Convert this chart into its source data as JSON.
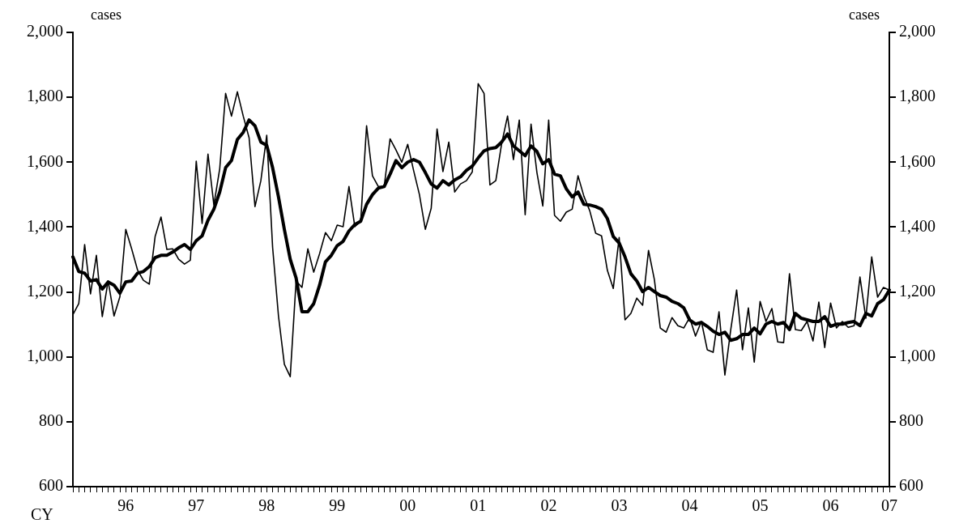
{
  "chart_data": {
    "type": "line",
    "xlabel": "CY",
    "ylabel": "cases",
    "y2label": "cases",
    "categories": [
      null,
      null,
      null,
      null,
      null,
      null,
      null,
      null,
      null,
      "96",
      null,
      null,
      null,
      null,
      null,
      null,
      null,
      null,
      null,
      null,
      null,
      "97",
      null,
      null,
      null,
      null,
      null,
      null,
      null,
      null,
      null,
      null,
      null,
      "98",
      null,
      null,
      null,
      null,
      null,
      null,
      null,
      null,
      null,
      null,
      null,
      "99",
      null,
      null,
      null,
      null,
      null,
      null,
      null,
      null,
      null,
      null,
      null,
      "00",
      null,
      null,
      null,
      null,
      null,
      null,
      null,
      null,
      null,
      null,
      null,
      "01",
      null,
      null,
      null,
      null,
      null,
      null,
      null,
      null,
      null,
      null,
      null,
      "02",
      null,
      null,
      null,
      null,
      null,
      null,
      null,
      null,
      null,
      null,
      null,
      "03",
      null,
      null,
      null,
      null,
      null,
      null,
      null,
      null,
      null,
      null,
      null,
      "04",
      null,
      null,
      null,
      null,
      null,
      null,
      null,
      null,
      null,
      null,
      null,
      "05",
      null,
      null,
      null,
      null,
      null,
      null,
      null,
      null,
      null,
      null,
      null,
      "06",
      null,
      null,
      null,
      null,
      null,
      null,
      null,
      null,
      null,
      "07"
    ],
    "series": [
      {
        "color": "#000000",
        "values": [
          1130,
          1164,
          1346,
          1194,
          1313,
          1124,
          1234,
          1126,
          1185,
          1393,
          1333,
          1268,
          1236,
          1224,
          1371,
          1431,
          1331,
          1333,
          1301,
          1286,
          1298,
          1603,
          1411,
          1625,
          1468,
          1580,
          1812,
          1742,
          1817,
          1742,
          1675,
          1463,
          1543,
          1683,
          1338,
          1126,
          977,
          939,
          1234,
          1214,
          1333,
          1261,
          1318,
          1383,
          1358,
          1406,
          1401,
          1525,
          1401,
          1418,
          1712,
          1558,
          1525,
          1525,
          1672,
          1638,
          1600,
          1655,
          1575,
          1500,
          1393,
          1458,
          1702,
          1571,
          1662,
          1508,
          1533,
          1543,
          1570,
          1842,
          1812,
          1530,
          1543,
          1658,
          1742,
          1608,
          1730,
          1438,
          1717,
          1568,
          1465,
          1730,
          1436,
          1418,
          1446,
          1455,
          1558,
          1495,
          1450,
          1381,
          1373,
          1266,
          1211,
          1368,
          1114,
          1134,
          1181,
          1159,
          1328,
          1238,
          1089,
          1076,
          1121,
          1096,
          1089,
          1121,
          1064,
          1109,
          1022,
          1014,
          1139,
          944,
          1084,
          1206,
          1022,
          1151,
          984,
          1171,
          1109,
          1149,
          1046,
          1044,
          1256,
          1084,
          1081,
          1109,
          1049,
          1169,
          1029,
          1166,
          1089,
          1109,
          1091,
          1096,
          1246,
          1119,
          1308,
          1184,
          1214,
          1206
        ]
      },
      {
        "color": "#000000",
        "values": [
          1308,
          1263,
          1258,
          1234,
          1238,
          1209,
          1231,
          1221,
          1196,
          1231,
          1234,
          1258,
          1263,
          1278,
          1306,
          1313,
          1313,
          1323,
          1336,
          1346,
          1331,
          1358,
          1373,
          1421,
          1455,
          1508,
          1583,
          1605,
          1670,
          1692,
          1730,
          1712,
          1662,
          1652,
          1583,
          1493,
          1393,
          1301,
          1243,
          1139,
          1139,
          1164,
          1221,
          1293,
          1313,
          1343,
          1356,
          1388,
          1408,
          1418,
          1470,
          1500,
          1520,
          1525,
          1563,
          1605,
          1583,
          1600,
          1608,
          1600,
          1568,
          1533,
          1520,
          1543,
          1530,
          1545,
          1555,
          1575,
          1588,
          1613,
          1635,
          1642,
          1645,
          1662,
          1687,
          1650,
          1635,
          1620,
          1650,
          1633,
          1595,
          1608,
          1563,
          1558,
          1518,
          1493,
          1508,
          1470,
          1468,
          1463,
          1455,
          1426,
          1371,
          1351,
          1308,
          1256,
          1234,
          1201,
          1214,
          1201,
          1189,
          1184,
          1171,
          1164,
          1151,
          1114,
          1101,
          1106,
          1094,
          1079,
          1069,
          1076,
          1051,
          1056,
          1069,
          1069,
          1089,
          1071,
          1101,
          1109,
          1101,
          1106,
          1084,
          1134,
          1119,
          1114,
          1109,
          1109,
          1124,
          1094,
          1101,
          1101,
          1106,
          1109,
          1096,
          1134,
          1126,
          1164,
          1176,
          1206
        ]
      }
    ],
    "ylim": [
      600,
      2000
    ],
    "yticks": [
      600,
      800,
      {
        "value": 1000,
        "label": "1,000"
      },
      {
        "value": 1200,
        "label": "1,200"
      },
      {
        "value": 1400,
        "label": "1,400"
      },
      {
        "value": 1600,
        "label": "1,600"
      },
      {
        "value": 1800,
        "label": "1,800"
      },
      {
        "value": 2000,
        "label": "2,000"
      }
    ],
    "y2lim": [
      600,
      2000
    ],
    "y2ticks": [
      600,
      800,
      {
        "value": 1000,
        "label": "1,000"
      },
      {
        "value": 1200,
        "label": "1,200"
      },
      {
        "value": 1400,
        "label": "1,400"
      },
      {
        "value": 1600,
        "label": "1,600"
      },
      {
        "value": 1800,
        "label": "1,800"
      },
      {
        "value": 2000,
        "label": "2,000"
      }
    ],
    "grid": false,
    "legend": false,
    "marker": "none",
    "line_style": "solid"
  }
}
